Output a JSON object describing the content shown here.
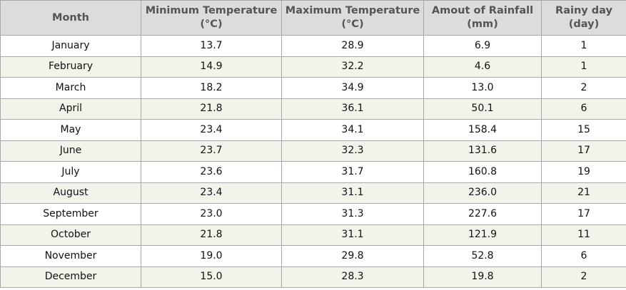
{
  "table": {
    "headers": [
      {
        "line1": "Month",
        "line2": ""
      },
      {
        "line1": "Minimum Temperature",
        "line2": "(°C)"
      },
      {
        "line1": "Maximum Temperature",
        "line2": "(°C)"
      },
      {
        "line1": "Amout of Rainfall",
        "line2": "(mm)"
      },
      {
        "line1": "Rainy day",
        "line2": "(day)"
      }
    ],
    "rows": [
      [
        "January",
        "13.7",
        "28.9",
        "6.9",
        "1"
      ],
      [
        "February",
        "14.9",
        "32.2",
        "4.6",
        "1"
      ],
      [
        "March",
        "18.2",
        "34.9",
        "13.0",
        "2"
      ],
      [
        "April",
        "21.8",
        "36.1",
        "50.1",
        "6"
      ],
      [
        "May",
        "23.4",
        "34.1",
        "158.4",
        "15"
      ],
      [
        "June",
        "23.7",
        "32.3",
        "131.6",
        "17"
      ],
      [
        "July",
        "23.6",
        "31.7",
        "160.8",
        "19"
      ],
      [
        "August",
        "23.4",
        "31.1",
        "236.0",
        "21"
      ],
      [
        "September",
        "23.0",
        "31.3",
        "227.6",
        "17"
      ],
      [
        "October",
        "21.8",
        "31.1",
        "121.9",
        "11"
      ],
      [
        "November",
        "19.0",
        "29.8",
        "52.8",
        "6"
      ],
      [
        "December",
        "15.0",
        "28.3",
        "19.8",
        "2"
      ]
    ]
  },
  "colors": {
    "header_bg": "#dcdcdc",
    "header_text": "#555555",
    "row_alt_bg": "#f2f3ea",
    "border": "#a8a8a8"
  }
}
